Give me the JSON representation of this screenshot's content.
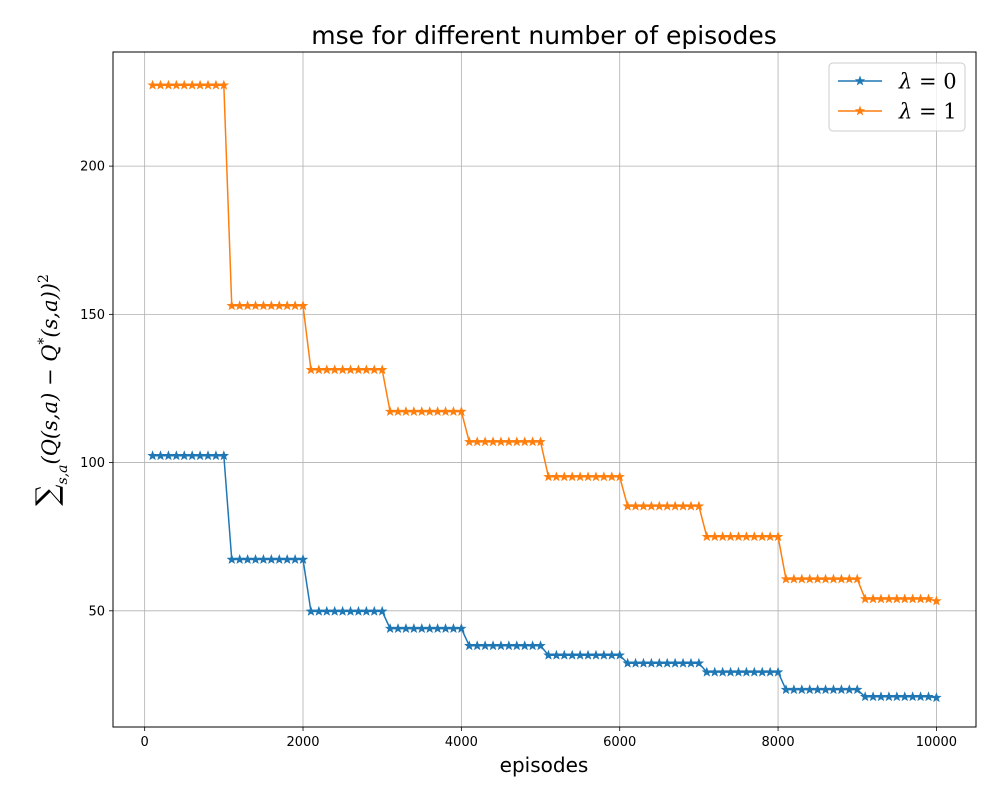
{
  "chart_data": {
    "type": "line",
    "title": "mse for different number of episodes",
    "xlabel": "episodes",
    "ylabel": "∑s,a(Q(s,a) − Q*(s,a))²",
    "ylabel_parts": {
      "sum": "∑",
      "sub": "s,a",
      "body": "(Q(s,a) − Q",
      "star": "*",
      "body2": "(s,a))",
      "sq": "2"
    },
    "xlim": [
      -400,
      10500
    ],
    "ylim": [
      10.8,
      238.5
    ],
    "xticks": [
      0,
      2000,
      4000,
      6000,
      8000,
      10000
    ],
    "yticks": [
      50,
      100,
      150,
      200
    ],
    "grid": true,
    "legend_position": "top-right",
    "marker": "star",
    "x": [
      100,
      200,
      300,
      400,
      500,
      600,
      700,
      800,
      900,
      1000,
      1100,
      1200,
      1300,
      1400,
      1500,
      1600,
      1700,
      1800,
      1900,
      2000,
      2100,
      2200,
      2300,
      2400,
      2500,
      2600,
      2700,
      2800,
      2900,
      3000,
      3100,
      3200,
      3300,
      3400,
      3500,
      3600,
      3700,
      3800,
      3900,
      4000,
      4100,
      4200,
      4300,
      4400,
      4500,
      4600,
      4700,
      4800,
      4900,
      5000,
      5100,
      5200,
      5300,
      5400,
      5500,
      5600,
      5700,
      5800,
      5900,
      6000,
      6100,
      6200,
      6300,
      6400,
      6500,
      6600,
      6700,
      6800,
      6900,
      7000,
      7100,
      7200,
      7300,
      7400,
      7500,
      7600,
      7700,
      7800,
      7900,
      8000,
      8100,
      8200,
      8300,
      8400,
      8500,
      8600,
      8700,
      8800,
      8900,
      9000,
      9100,
      9200,
      9300,
      9400,
      9500,
      9600,
      9700,
      9800,
      9900,
      10000
    ],
    "series": [
      {
        "name": "λ = 0",
        "label_parts": {
          "sym": "λ",
          "rest": " = 0"
        },
        "color": "#1f77b4",
        "step_levels": [
          102.3,
          67.3,
          49.8,
          44.0,
          38.2,
          35.0,
          32.3,
          29.3,
          23.4,
          21.0
        ],
        "final_value": 20.7
      },
      {
        "name": "λ = 1",
        "label_parts": {
          "sym": "λ",
          "rest": " = 1"
        },
        "color": "#ff7f0e",
        "step_levels": [
          227.3,
          152.9,
          131.3,
          117.2,
          107.0,
          95.2,
          85.3,
          75.0,
          60.7,
          54.0
        ],
        "final_value": 53.3
      }
    ]
  }
}
